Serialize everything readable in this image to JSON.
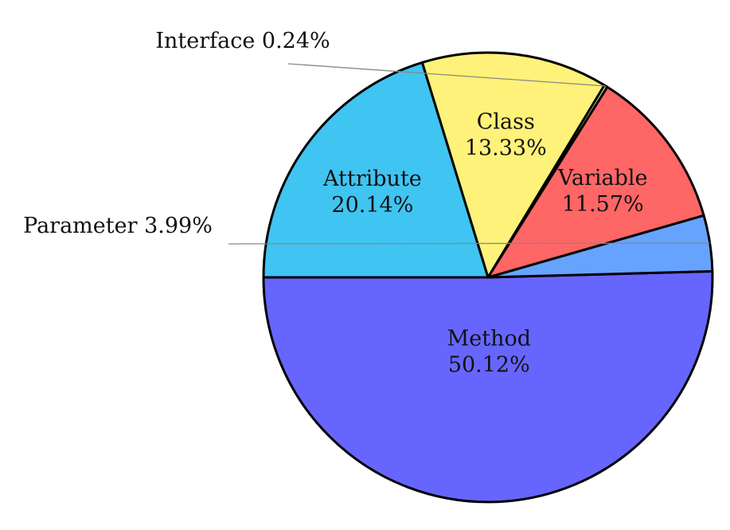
{
  "chart_data": {
    "type": "pie",
    "title": "",
    "slices": [
      {
        "label": "Method",
        "value": 50.12,
        "display": "50.12%",
        "color": "#6666ff",
        "label_mode": "inside"
      },
      {
        "label": "Parameter",
        "value": 3.99,
        "display": "3.99%",
        "color": "#66a3ff",
        "label_mode": "outside"
      },
      {
        "label": "Variable",
        "value": 11.57,
        "display": "11.57%",
        "color": "#ff6666",
        "label_mode": "inside"
      },
      {
        "label": "Interface",
        "value": 0.24,
        "display": "0.24%",
        "color": "#e6e6a0",
        "label_mode": "outside"
      },
      {
        "label": "Class",
        "value": 13.33,
        "display": "13.33%",
        "color": "#fff27a",
        "label_mode": "inside"
      },
      {
        "label": "Attribute",
        "value": 20.14,
        "display": "20.14%",
        "color": "#40c4f2",
        "label_mode": "inside"
      }
    ]
  }
}
